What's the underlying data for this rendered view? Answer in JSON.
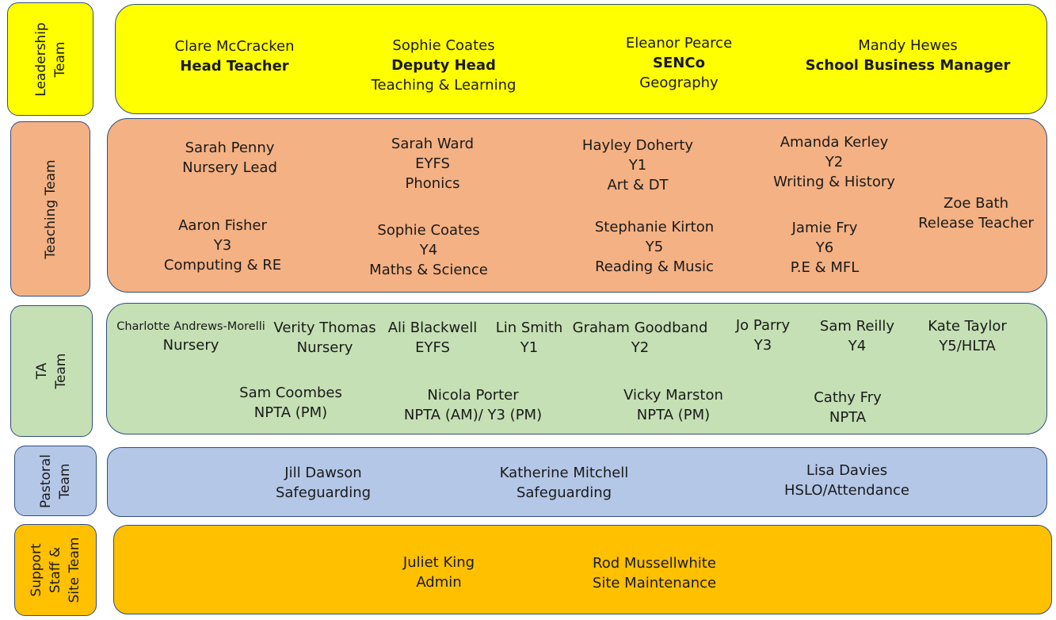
{
  "colors": {
    "leadership": "#ffff00",
    "teaching": "#f4b183",
    "ta": "#c5e0b4",
    "pastoral": "#b4c7e7",
    "support": "#ffc000",
    "border": "#2f4f7f"
  },
  "teams": {
    "leadership": {
      "label1": "Leadership",
      "label2": "Team"
    },
    "teaching": {
      "label1": "Teaching Team"
    },
    "ta": {
      "label1": "TA",
      "label2": "Team"
    },
    "pastoral": {
      "label1": "Pastoral",
      "label2": "Team"
    },
    "support": {
      "label1": "Support",
      "label2": "Staff &",
      "label3": "Site Team"
    }
  },
  "leadership": [
    {
      "name": "Clare McCracken",
      "role": "Head Teacher"
    },
    {
      "name": "Sophie Coates",
      "role": "Deputy Head",
      "detail": "Teaching & Learning"
    },
    {
      "name": "Eleanor Pearce",
      "role": "SENCo",
      "detail": "Geography"
    },
    {
      "name": "Mandy Hewes",
      "role": "School Business Manager"
    }
  ],
  "teaching": [
    {
      "name": "Sarah Penny",
      "line2": "Nursery Lead"
    },
    {
      "name": "Sarah Ward",
      "line2": "EYFS",
      "line3": "Phonics"
    },
    {
      "name": "Hayley Doherty",
      "line2": "Y1",
      "line3": "Art & DT"
    },
    {
      "name": "Amanda Kerley",
      "line2": "Y2",
      "line3": "Writing & History"
    },
    {
      "name": "Zoe Bath",
      "line2": "Release Teacher"
    },
    {
      "name": "Aaron Fisher",
      "line2": "Y3",
      "line3": "Computing &  RE"
    },
    {
      "name": "Sophie Coates",
      "line2": "Y4",
      "line3": "Maths & Science"
    },
    {
      "name": "Stephanie Kirton",
      "line2": "Y5",
      "line3": "Reading & Music"
    },
    {
      "name": "Jamie Fry",
      "line2": "Y6",
      "line3": "P.E & MFL"
    }
  ],
  "ta": [
    {
      "name": "Charlotte Andrews-Morelli",
      "line2": "Nursery"
    },
    {
      "name": "Verity Thomas",
      "line2": "Nursery"
    },
    {
      "name": "Ali Blackwell",
      "line2": "EYFS"
    },
    {
      "name": "Lin Smith",
      "line2": "Y1"
    },
    {
      "name": "Graham Goodband",
      "line2": "Y2"
    },
    {
      "name": "Jo Parry",
      "line2": "Y3"
    },
    {
      "name": "Sam Reilly",
      "line2": "Y4"
    },
    {
      "name": "Kate Taylor",
      "line2": "Y5/HLTA"
    },
    {
      "name": "Sam Coombes",
      "line2": "NPTA (PM)"
    },
    {
      "name": "Nicola Porter",
      "line2": "NPTA (AM)/ Y3 (PM)"
    },
    {
      "name": "Vicky Marston",
      "line2": "NPTA (PM)"
    },
    {
      "name": "Cathy Fry",
      "line2": "NPTA"
    }
  ],
  "pastoral": [
    {
      "name": "Jill Dawson",
      "line2": "Safeguarding"
    },
    {
      "name": "Katherine Mitchell",
      "line2": "Safeguarding"
    },
    {
      "name": "Lisa Davies",
      "line2": "HSLO/Attendance"
    }
  ],
  "support": [
    {
      "name": "Juliet King",
      "line2": "Admin"
    },
    {
      "name": "Rod Mussellwhite",
      "line2": "Site Maintenance"
    }
  ]
}
